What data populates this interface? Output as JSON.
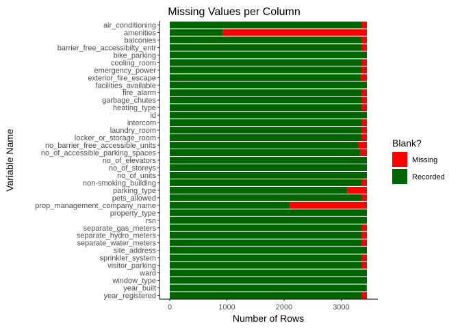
{
  "chart_data": {
    "type": "bar",
    "orientation": "horizontal",
    "stacked": true,
    "title": "Missing Values per Column",
    "xlabel": "Number of Rows",
    "ylabel": "Variable Name",
    "xlim": [
      0,
      3450
    ],
    "xticks": [
      0,
      1000,
      2000,
      3000
    ],
    "grid": false,
    "legend_position": "right",
    "legend_title": "Blank?",
    "colors": {
      "Missing": "#ff0000",
      "Recorded": "#006400"
    },
    "categories": [
      "air_conditioning",
      "amenities",
      "balconies",
      "barrier_free_accessibilty_entr",
      "bike_parking",
      "cooling_room",
      "emergency_power",
      "exterior_fire_escape",
      "facilities_available",
      "fire_alarm",
      "garbage_chutes",
      "heating_type",
      "id",
      "intercom",
      "laundry_room",
      "locker_or_storage_room",
      "no_barrier_free_accessible_units",
      "no_of_accessible_parking_spaces",
      "no_of_elevators",
      "no_of_storeys",
      "no_of_units",
      "non-smoking_building",
      "parking_type",
      "pets_allowed",
      "prop_management_company_name",
      "property_type",
      "rsn",
      "separate_gas_meters",
      "separate_hydro_meters",
      "separate_water_meters",
      "site_address",
      "sprinkler_system",
      "visitor_parking",
      "ward",
      "window_type",
      "year_built",
      "year_registered"
    ],
    "series": [
      {
        "name": "Recorded",
        "values": [
          3360,
          930,
          3360,
          3360,
          3450,
          3360,
          3360,
          3350,
          3450,
          3360,
          3360,
          3360,
          3450,
          3360,
          3360,
          3360,
          3300,
          3340,
          3450,
          3450,
          3450,
          3360,
          3110,
          3360,
          2100,
          3450,
          3450,
          3360,
          3360,
          3360,
          3450,
          3360,
          3360,
          3450,
          3450,
          3440,
          3360
        ]
      },
      {
        "name": "Missing",
        "values": [
          90,
          2520,
          90,
          90,
          0,
          90,
          90,
          100,
          0,
          90,
          90,
          90,
          0,
          90,
          90,
          90,
          150,
          110,
          0,
          0,
          0,
          90,
          340,
          90,
          1350,
          0,
          0,
          90,
          90,
          90,
          0,
          90,
          90,
          0,
          0,
          10,
          90
        ]
      }
    ]
  }
}
